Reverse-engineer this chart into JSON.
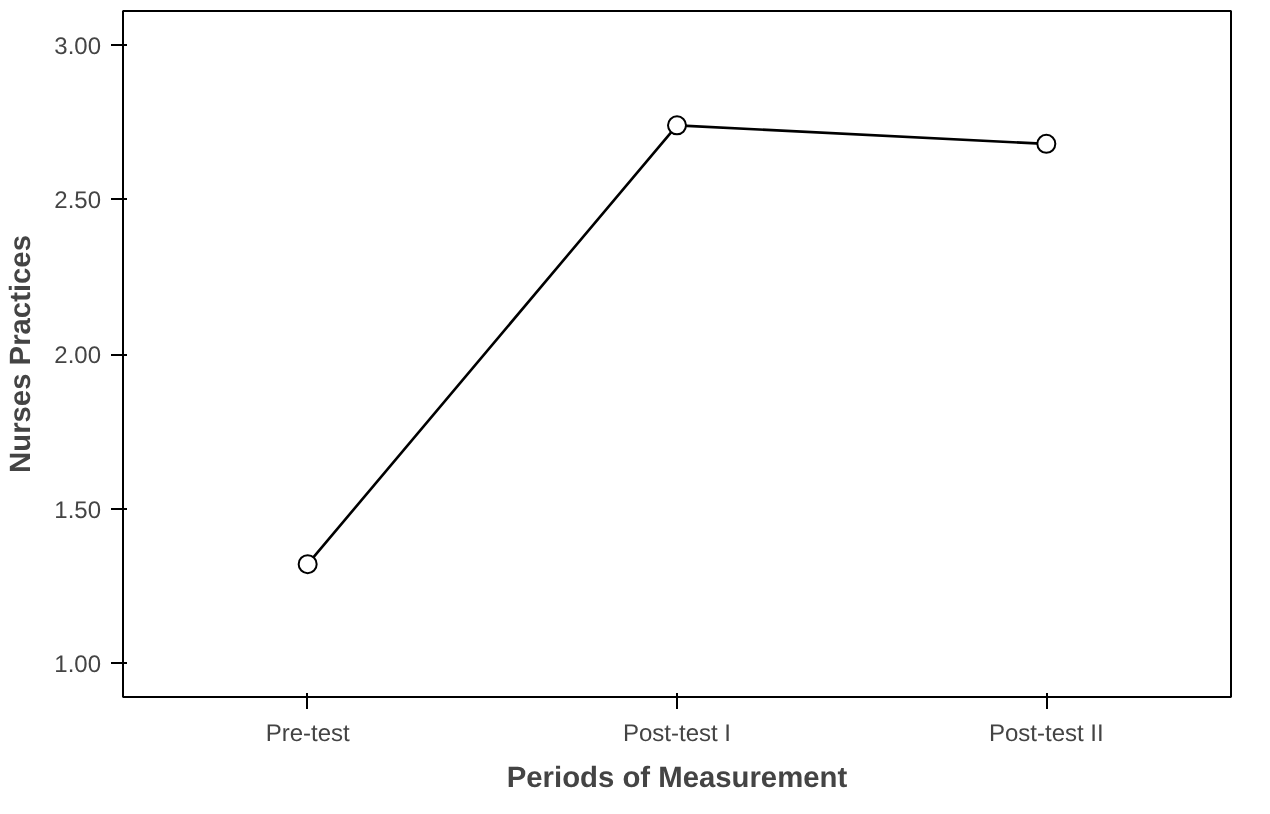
{
  "chart_data": {
    "type": "line",
    "xlabel": "Periods of Measurement",
    "ylabel": "Nurses Practices",
    "categories": [
      "Pre-test",
      "Post-test I",
      "Post-test II"
    ],
    "series": [
      {
        "color": "#000000",
        "values": [
          1.32,
          2.74,
          2.68
        ]
      }
    ],
    "ylim": [
      0.89,
      3.11
    ],
    "yticks": [
      {
        "value": 1,
        "label": "1.00"
      },
      {
        "value": 1.5,
        "label": "1.50"
      },
      {
        "value": 2,
        "label": "2.00"
      },
      {
        "value": 2.5,
        "label": "2.50"
      },
      {
        "value": 3,
        "label": "3.00"
      }
    ],
    "grid": false,
    "marker": "circle",
    "line_style": "solid"
  }
}
